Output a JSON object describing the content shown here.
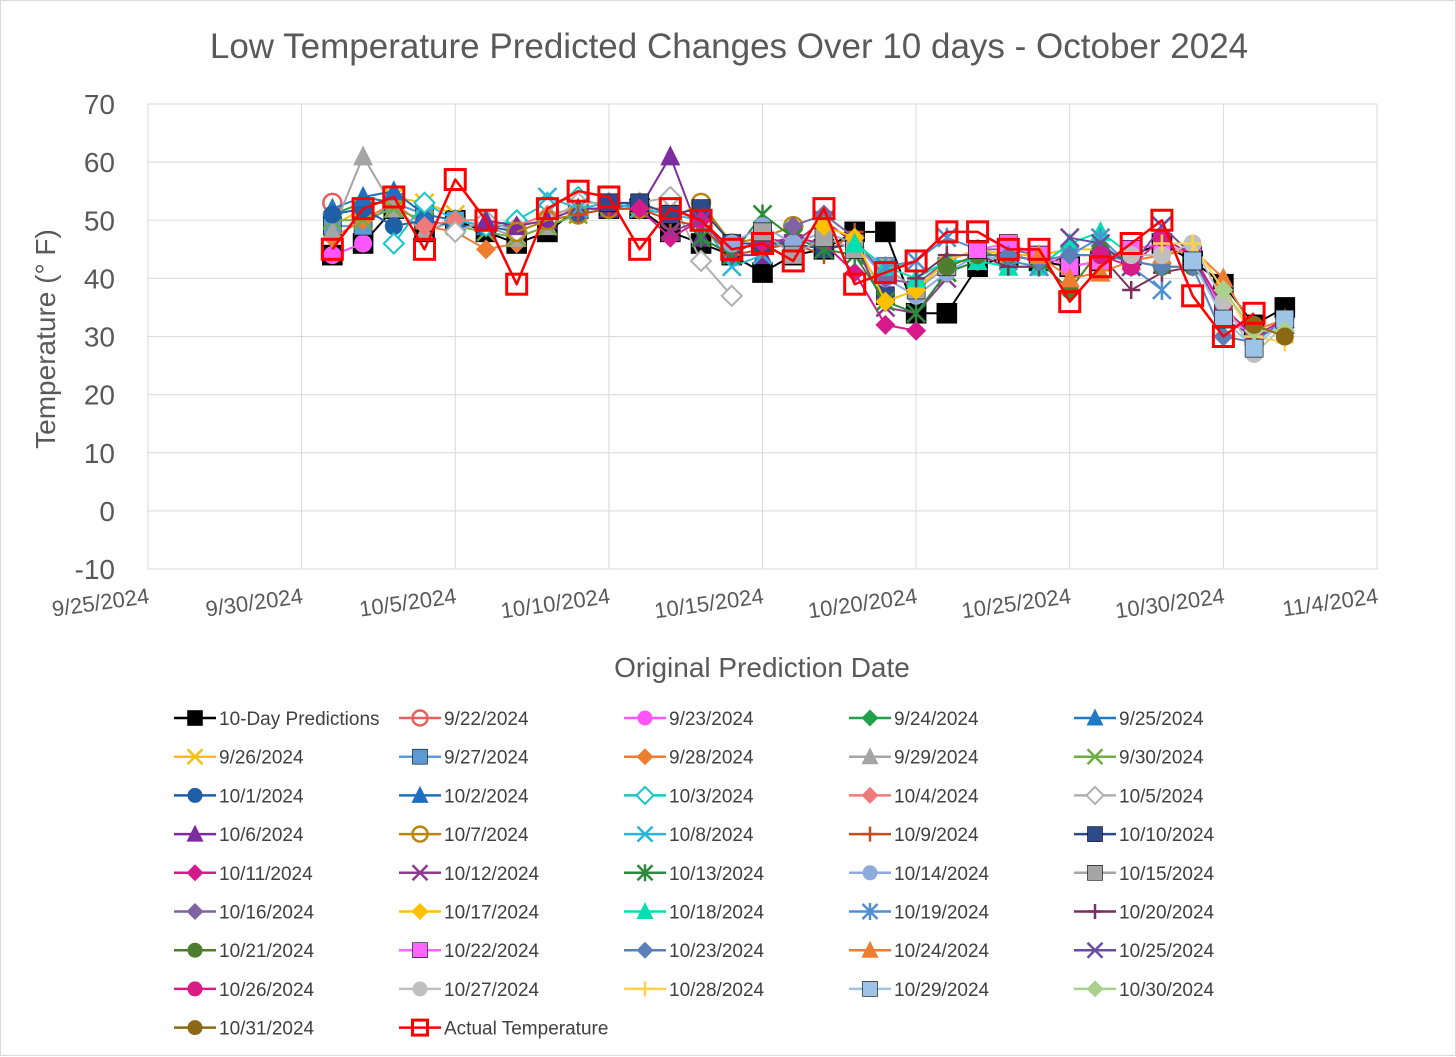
{
  "chart_data": {
    "type": "line",
    "title": "Low Temperature Predicted Changes Over 10 days - October 2024",
    "xlabel": "Original Prediction Date",
    "ylabel": "Temperature (° F)",
    "xlim": [
      "9/25/2024",
      "11/4/2024"
    ],
    "ylim": [
      -10,
      70
    ],
    "x_ticks": [
      "9/25/2024",
      "9/30/2024",
      "10/5/2024",
      "10/10/2024",
      "10/15/2024",
      "10/20/2024",
      "10/25/2024",
      "10/30/2024",
      "11/4/2024"
    ],
    "y_ticks": [
      "70",
      "60",
      "50",
      "40",
      "30",
      "20",
      "10",
      "0",
      "-10"
    ],
    "grid": true,
    "legend_position": "bottom",
    "start_date": "10/1/2024",
    "series": [
      {
        "name": "10-Day Predictions",
        "color": "#000000",
        "marker": "square",
        "values": [
          44,
          46,
          52,
          48,
          50,
          48,
          46,
          48,
          52,
          52,
          52,
          48,
          46,
          44,
          41,
          44,
          45,
          48,
          48,
          34,
          34,
          42,
          44,
          43,
          42,
          43,
          44,
          46,
          43,
          39,
          32,
          35
        ]
      },
      {
        "name": "9/22/2024",
        "color": "#e8605e",
        "marker": "circle-open",
        "values": [
          53
        ]
      },
      {
        "name": "9/23/2024",
        "color": "#ff55ff",
        "marker": "circle",
        "values": [
          44,
          46
        ]
      },
      {
        "name": "9/24/2024",
        "color": "#22a04b",
        "marker": "diamond",
        "values": [
          51,
          53,
          53
        ]
      },
      {
        "name": "9/25/2024",
        "color": "#1f7ac6",
        "marker": "triangle",
        "values": [
          52,
          54,
          53,
          51
        ]
      },
      {
        "name": "9/26/2024",
        "color": "#f4c20d",
        "marker": "x",
        "values": [
          49,
          52,
          54,
          53,
          51
        ]
      },
      {
        "name": "9/27/2024",
        "color": "#5b9bd5",
        "marker": "square",
        "values": [
          49,
          49,
          53,
          51,
          50,
          49
        ]
      },
      {
        "name": "9/28/2024",
        "color": "#ed7d31",
        "marker": "diamond",
        "values": [
          47,
          50,
          53,
          49,
          48,
          45,
          46
        ]
      },
      {
        "name": "9/29/2024",
        "color": "#a5a5a5",
        "marker": "triangle",
        "values": [
          48,
          61,
          52,
          48,
          50,
          49,
          47,
          49
        ]
      },
      {
        "name": "9/30/2024",
        "color": "#70ad47",
        "marker": "x",
        "values": [
          50,
          50,
          52,
          50,
          49,
          48,
          47,
          49,
          51
        ]
      },
      {
        "name": "10/1/2024",
        "color": "#1f5fa8",
        "marker": "circle",
        "values": [
          51,
          52,
          49,
          50,
          49,
          49,
          48,
          50,
          51,
          52
        ]
      },
      {
        "name": "10/2/2024",
        "color": "#1f6fbf",
        "marker": "triangle",
        "values": [
          null,
          54,
          55,
          51,
          50,
          49,
          49,
          51,
          52,
          52,
          53
        ]
      },
      {
        "name": "10/3/2024",
        "color": "#17c6c6",
        "marker": "diamond-open",
        "values": [
          null,
          null,
          46,
          53,
          50,
          49,
          50,
          53,
          54,
          52,
          52,
          51
        ]
      },
      {
        "name": "10/4/2024",
        "color": "#f07a7a",
        "marker": "diamond",
        "values": [
          null,
          null,
          null,
          49,
          50,
          50,
          49,
          51,
          52,
          52,
          52,
          52,
          50
        ]
      },
      {
        "name": "10/5/2024",
        "color": "#b0b0b0",
        "marker": "diamond-open",
        "values": [
          null,
          null,
          null,
          null,
          48,
          50,
          48,
          50,
          53,
          53,
          53,
          54,
          43,
          37
        ]
      },
      {
        "name": "10/6/2024",
        "color": "#7b2c9e",
        "marker": "triangle",
        "values": [
          null,
          null,
          null,
          null,
          null,
          50,
          49,
          50,
          52,
          52,
          52,
          61,
          47,
          44,
          44
        ]
      },
      {
        "name": "10/7/2024",
        "color": "#b8860b",
        "marker": "circle-open",
        "values": [
          null,
          null,
          null,
          null,
          null,
          null,
          48,
          50,
          51,
          52,
          52,
          50,
          53,
          46,
          47,
          49
        ]
      },
      {
        "name": "10/8/2024",
        "color": "#2ab5d9",
        "marker": "x",
        "values": [
          null,
          null,
          null,
          null,
          null,
          null,
          null,
          54,
          52,
          53,
          52,
          51,
          50,
          42,
          44,
          48,
          45
        ]
      },
      {
        "name": "10/9/2024",
        "color": "#c0501c",
        "marker": "plus",
        "values": [
          null,
          null,
          null,
          null,
          null,
          null,
          null,
          null,
          51,
          52,
          52,
          50,
          49,
          44,
          45,
          46,
          44,
          48
        ]
      },
      {
        "name": "10/10/2024",
        "color": "#2e4a8b",
        "marker": "square",
        "values": [
          null,
          null,
          null,
          null,
          null,
          null,
          null,
          null,
          null,
          53,
          53,
          51,
          52,
          46,
          46,
          46,
          45,
          46,
          37
        ]
      },
      {
        "name": "10/11/2024",
        "color": "#d61a8c",
        "marker": "diamond",
        "values": [
          null,
          null,
          null,
          null,
          null,
          null,
          null,
          null,
          null,
          null,
          52,
          47,
          50,
          45,
          46,
          47,
          46,
          41,
          32,
          31
        ]
      },
      {
        "name": "10/12/2024",
        "color": "#8e3a8e",
        "marker": "x",
        "values": [
          null,
          null,
          null,
          null,
          null,
          null,
          null,
          null,
          null,
          null,
          null,
          48,
          50,
          44,
          47,
          46,
          50,
          46,
          35,
          34,
          40
        ]
      },
      {
        "name": "10/13/2024",
        "color": "#2d8a3a",
        "marker": "asterisk",
        "values": [
          null,
          null,
          null,
          null,
          null,
          null,
          null,
          null,
          null,
          null,
          null,
          null,
          47,
          44,
          51,
          47,
          45,
          44,
          36,
          34,
          41,
          43
        ]
      },
      {
        "name": "10/14/2024",
        "color": "#8faadc",
        "marker": "circle",
        "values": [
          null,
          null,
          null,
          null,
          null,
          null,
          null,
          null,
          null,
          null,
          null,
          null,
          null,
          46,
          49,
          46,
          48,
          46,
          40,
          37,
          41,
          44,
          43
        ]
      },
      {
        "name": "10/15/2024",
        "color": "#a6a6a6",
        "marker": "square",
        "values": [
          null,
          null,
          null,
          null,
          null,
          null,
          null,
          null,
          null,
          null,
          null,
          null,
          null,
          null,
          48,
          44,
          47,
          45,
          42,
          38,
          42,
          44,
          44,
          44
        ]
      },
      {
        "name": "10/16/2024",
        "color": "#8064a2",
        "marker": "diamond",
        "values": [
          null,
          null,
          null,
          null,
          null,
          null,
          null,
          null,
          null,
          null,
          null,
          null,
          null,
          null,
          null,
          49,
          51,
          47,
          40,
          39,
          43,
          45,
          45,
          44,
          45
        ]
      },
      {
        "name": "10/17/2024",
        "color": "#ffc000",
        "marker": "diamond",
        "values": [
          null,
          null,
          null,
          null,
          null,
          null,
          null,
          null,
          null,
          null,
          null,
          null,
          null,
          null,
          null,
          null,
          49,
          47,
          36,
          38,
          43,
          45,
          44,
          44,
          45,
          45
        ]
      },
      {
        "name": "10/18/2024",
        "color": "#00e0b0",
        "marker": "triangle",
        "values": [
          null,
          null,
          null,
          null,
          null,
          null,
          null,
          null,
          null,
          null,
          null,
          null,
          null,
          null,
          null,
          null,
          null,
          46,
          42,
          40,
          43,
          43,
          42,
          42,
          46,
          48,
          44
        ]
      },
      {
        "name": "10/19/2024",
        "color": "#4f8fd6",
        "marker": "asterisk",
        "values": [
          null,
          null,
          null,
          null,
          null,
          null,
          null,
          null,
          null,
          null,
          null,
          null,
          null,
          null,
          null,
          null,
          null,
          null,
          42,
          43,
          47,
          45,
          43,
          42,
          44,
          47,
          42,
          38
        ]
      },
      {
        "name": "10/20/2024",
        "color": "#7e2f5e",
        "marker": "plus",
        "values": [
          null,
          null,
          null,
          null,
          null,
          null,
          null,
          null,
          null,
          null,
          null,
          null,
          null,
          null,
          null,
          null,
          null,
          null,
          null,
          40,
          44,
          44,
          42,
          42,
          44,
          44,
          38,
          41,
          42
        ]
      },
      {
        "name": "10/21/2024",
        "color": "#4e7d2e",
        "marker": "circle",
        "values": [
          null,
          null,
          null,
          null,
          null,
          null,
          null,
          null,
          null,
          null,
          null,
          null,
          null,
          null,
          null,
          null,
          null,
          null,
          null,
          null,
          42,
          44,
          44,
          43,
          38,
          45,
          43,
          42,
          42,
          36
        ]
      },
      {
        "name": "10/22/2024",
        "color": "#ff66ff",
        "marker": "square",
        "values": [
          null,
          null,
          null,
          null,
          null,
          null,
          null,
          null,
          null,
          null,
          null,
          null,
          null,
          null,
          null,
          null,
          null,
          null,
          null,
          null,
          null,
          45,
          46,
          44,
          42,
          43,
          45,
          46,
          44,
          34,
          30
        ]
      },
      {
        "name": "10/23/2024",
        "color": "#5b7fb8",
        "marker": "diamond",
        "values": [
          null,
          null,
          null,
          null,
          null,
          null,
          null,
          null,
          null,
          null,
          null,
          null,
          null,
          null,
          null,
          null,
          null,
          null,
          null,
          null,
          null,
          null,
          44,
          43,
          44,
          44,
          43,
          42,
          42,
          30,
          29,
          33
        ]
      },
      {
        "name": "10/24/2024",
        "color": "#ed7d31",
        "marker": "triangle",
        "values": [
          null,
          null,
          null,
          null,
          null,
          null,
          null,
          null,
          null,
          null,
          null,
          null,
          null,
          null,
          null,
          null,
          null,
          null,
          null,
          null,
          null,
          null,
          null,
          44,
          40,
          41,
          43,
          44,
          45,
          40,
          31,
          33
        ]
      },
      {
        "name": "10/25/2024",
        "color": "#6b4ca0",
        "marker": "x",
        "values": [
          null,
          null,
          null,
          null,
          null,
          null,
          null,
          null,
          null,
          null,
          null,
          null,
          null,
          null,
          null,
          null,
          null,
          null,
          null,
          null,
          null,
          null,
          null,
          null,
          47,
          46,
          42,
          49,
          44,
          33,
          30,
          32
        ]
      },
      {
        "name": "10/26/2024",
        "color": "#d81b85",
        "marker": "circle",
        "values": [
          null,
          null,
          null,
          null,
          null,
          null,
          null,
          null,
          null,
          null,
          null,
          null,
          null,
          null,
          null,
          null,
          null,
          null,
          null,
          null,
          null,
          null,
          null,
          null,
          null,
          44,
          42,
          47,
          44,
          35,
          30,
          33
        ]
      },
      {
        "name": "10/27/2024",
        "color": "#bfbfbf",
        "marker": "circle",
        "values": [
          null,
          null,
          null,
          null,
          null,
          null,
          null,
          null,
          null,
          null,
          null,
          null,
          null,
          null,
          null,
          null,
          null,
          null,
          null,
          null,
          null,
          null,
          null,
          null,
          null,
          null,
          44,
          44,
          46,
          36,
          27,
          32
        ]
      },
      {
        "name": "10/28/2024",
        "color": "#ffd24d",
        "marker": "plus",
        "values": [
          null,
          null,
          null,
          null,
          null,
          null,
          null,
          null,
          null,
          null,
          null,
          null,
          null,
          null,
          null,
          null,
          null,
          null,
          null,
          null,
          null,
          null,
          null,
          null,
          null,
          null,
          null,
          46,
          46,
          38,
          30,
          29
        ]
      },
      {
        "name": "10/29/2024",
        "color": "#9dc3e6",
        "marker": "square",
        "values": [
          null,
          null,
          null,
          null,
          null,
          null,
          null,
          null,
          null,
          null,
          null,
          null,
          null,
          null,
          null,
          null,
          null,
          null,
          null,
          null,
          null,
          null,
          null,
          null,
          null,
          null,
          null,
          null,
          43,
          33,
          28,
          33
        ]
      },
      {
        "name": "10/30/2024",
        "color": "#a9d18e",
        "marker": "diamond",
        "values": [
          null,
          null,
          null,
          null,
          null,
          null,
          null,
          null,
          null,
          null,
          null,
          null,
          null,
          null,
          null,
          null,
          null,
          null,
          null,
          null,
          null,
          null,
          null,
          null,
          null,
          null,
          null,
          null,
          null,
          38,
          31,
          31
        ]
      },
      {
        "name": "10/31/2024",
        "color": "#8b6914",
        "marker": "circle",
        "values": [
          null,
          null,
          null,
          null,
          null,
          null,
          null,
          null,
          null,
          null,
          null,
          null,
          null,
          null,
          null,
          null,
          null,
          null,
          null,
          null,
          null,
          null,
          null,
          null,
          null,
          null,
          null,
          null,
          null,
          null,
          32,
          30
        ]
      },
      {
        "name": "Actual Temperature",
        "color": "#ff0000",
        "marker": "square-open",
        "values": [
          45,
          52,
          54,
          45,
          57,
          50,
          39,
          52,
          55,
          54,
          45,
          52,
          50,
          45,
          46,
          43,
          52,
          39,
          41,
          43,
          48,
          48,
          45,
          45,
          36,
          42,
          46,
          50,
          37,
          30,
          34
        ]
      }
    ]
  }
}
